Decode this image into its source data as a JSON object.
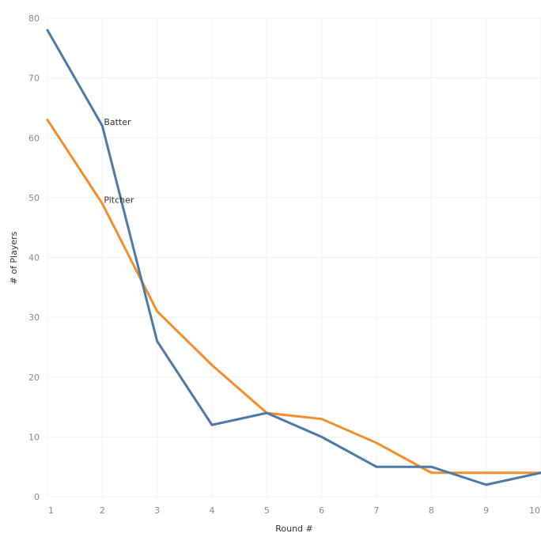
{
  "chart_data": {
    "type": "line",
    "title": "",
    "xlabel": "Round #",
    "ylabel": "# of Players",
    "x": [
      1,
      2,
      3,
      4,
      5,
      6,
      7,
      8,
      9,
      10
    ],
    "xlim": [
      1,
      10
    ],
    "ylim": [
      0,
      80
    ],
    "yticks": [
      0,
      10,
      20,
      30,
      40,
      50,
      60,
      70,
      80
    ],
    "grid": true,
    "series": [
      {
        "name": "Batter",
        "color": "#4e79a7",
        "values": [
          78,
          62,
          26,
          12,
          14,
          10,
          5,
          5,
          2,
          4
        ]
      },
      {
        "name": "Pitcher",
        "color": "#f28e2b",
        "values": [
          63,
          49,
          31,
          22,
          14,
          13,
          9,
          4,
          4,
          4
        ]
      }
    ]
  }
}
